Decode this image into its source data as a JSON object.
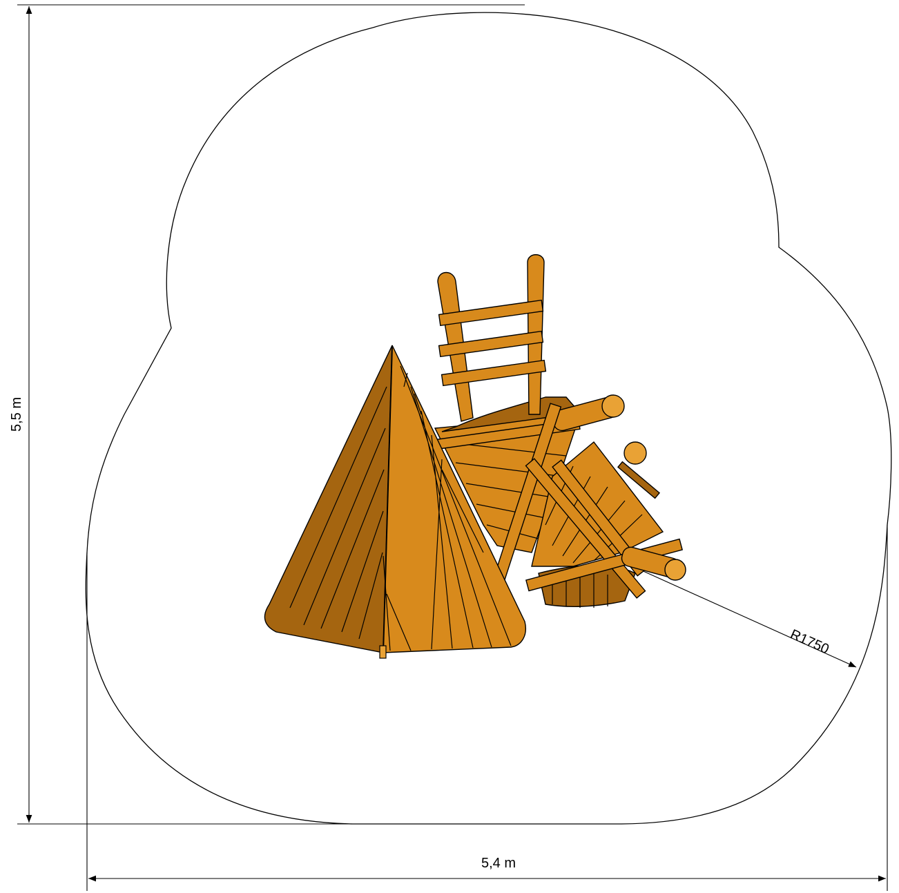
{
  "drawing": {
    "height_label": "5,5 m",
    "width_label": "5,4 m",
    "radius_label": "R1750",
    "colors": {
      "wood": "#d88a1c",
      "wood_dark": "#a56510",
      "wood_light": "#e9a235",
      "line": "#000000",
      "background": "#ffffff"
    }
  }
}
